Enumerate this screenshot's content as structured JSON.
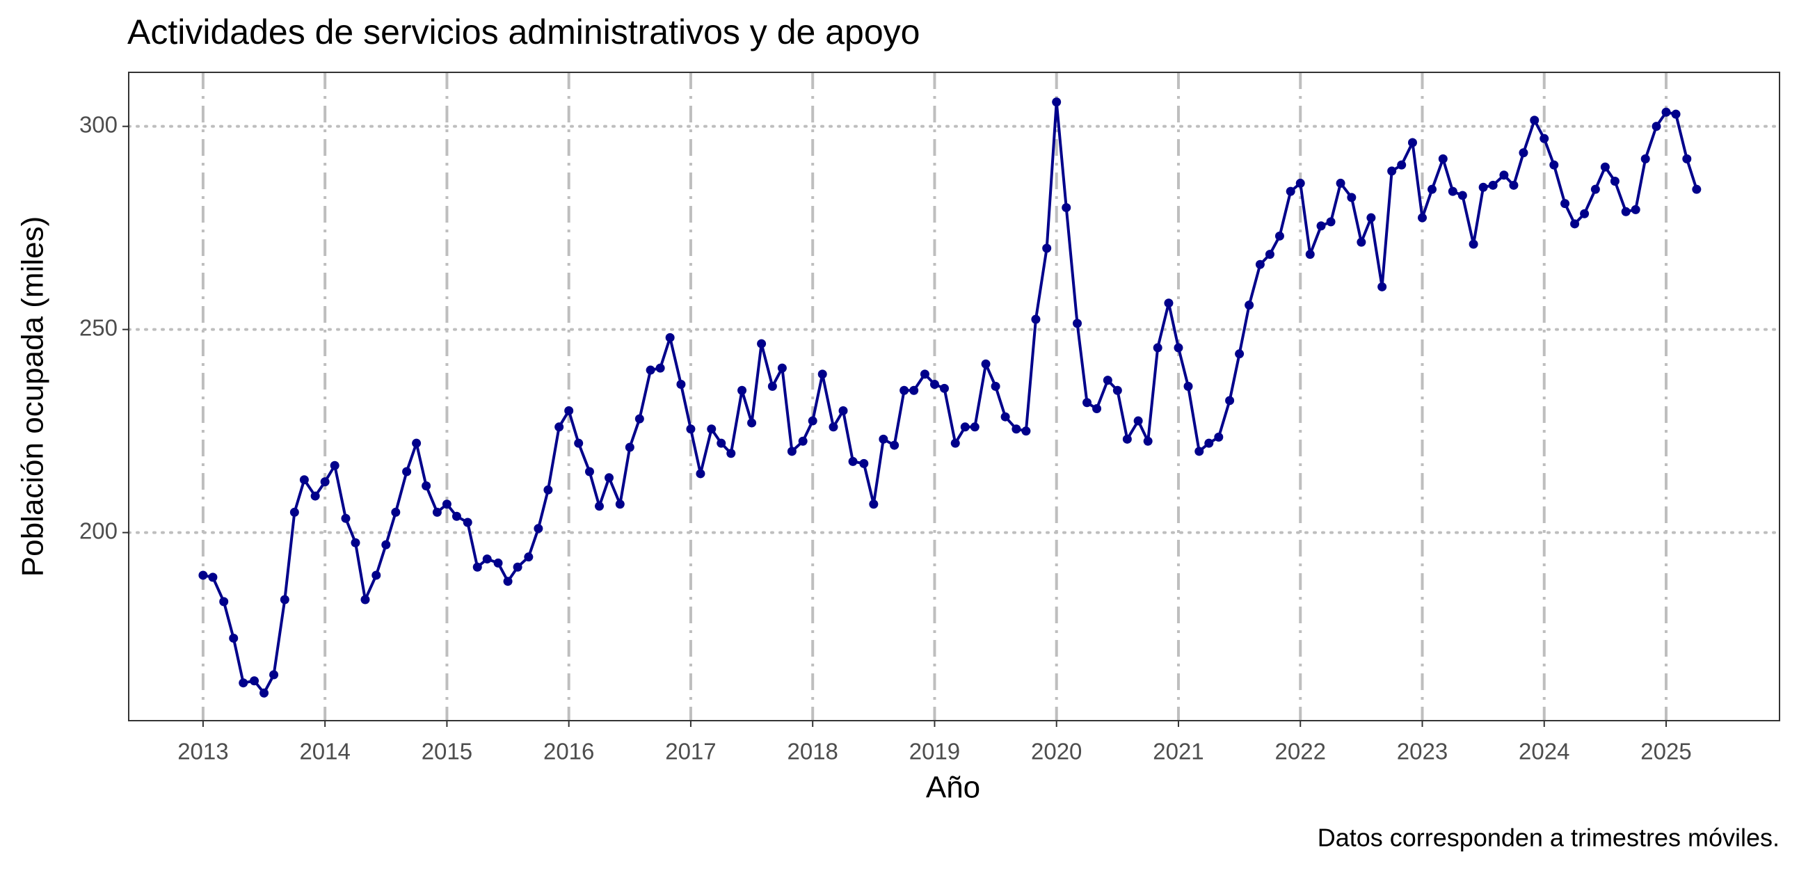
{
  "chart_data": {
    "type": "line",
    "title": "Actividades de servicios administrativos y de apoyo",
    "x_label": "Año",
    "y_label": "Población ocupada (miles)",
    "caption": "Datos corresponden a trimestres móviles.",
    "x": [
      2013,
      2013.08,
      2013.17,
      2013.25,
      2013.33,
      2013.42,
      2013.5,
      2013.58,
      2013.67,
      2013.75,
      2013.83,
      2013.92,
      2014,
      2014.08,
      2014.17,
      2014.25,
      2014.33,
      2014.42,
      2014.5,
      2014.58,
      2014.67,
      2014.75,
      2014.83,
      2014.92,
      2015,
      2015.08,
      2015.17,
      2015.25,
      2015.33,
      2015.42,
      2015.5,
      2015.58,
      2015.67,
      2015.75,
      2015.83,
      2015.92,
      2016,
      2016.08,
      2016.17,
      2016.25,
      2016.33,
      2016.42,
      2016.5,
      2016.58,
      2016.67,
      2016.75,
      2016.83,
      2016.92,
      2017,
      2017.08,
      2017.17,
      2017.25,
      2017.33,
      2017.42,
      2017.5,
      2017.58,
      2017.67,
      2017.75,
      2017.83,
      2017.92,
      2018,
      2018.08,
      2018.17,
      2018.25,
      2018.33,
      2018.42,
      2018.5,
      2018.58,
      2018.67,
      2018.75,
      2018.83,
      2018.92,
      2019,
      2019.08,
      2019.17,
      2019.25,
      2019.33,
      2019.42,
      2019.5,
      2019.58,
      2019.67,
      2019.75,
      2019.83,
      2019.92,
      2020,
      2020.08,
      2020.17,
      2020.25,
      2020.33,
      2020.42,
      2020.5,
      2020.58,
      2020.67,
      2020.75,
      2020.83,
      2020.92,
      2021,
      2021.08,
      2021.17,
      2021.25,
      2021.33,
      2021.42,
      2021.5,
      2021.58,
      2021.67,
      2021.75,
      2021.83,
      2021.92,
      2022,
      2022.08,
      2022.17,
      2022.25,
      2022.33,
      2022.42,
      2022.5,
      2022.58,
      2022.67,
      2022.75,
      2022.83,
      2022.92,
      2023,
      2023.08,
      2023.17,
      2023.25,
      2023.33,
      2023.42,
      2023.5,
      2023.58,
      2023.67,
      2023.75,
      2023.83,
      2023.92,
      2024,
      2024.08,
      2024.17,
      2024.25,
      2024.33,
      2024.42,
      2024.5,
      2024.58,
      2024.67,
      2024.75,
      2024.83,
      2024.92,
      2025,
      2025.08,
      2025.17,
      2025.25
    ],
    "series": [
      {
        "name": "Población ocupada",
        "color": "#00008b",
        "values": [
          189.5,
          189,
          183,
          174,
          163,
          163.5,
          160.5,
          165,
          183.5,
          205,
          213,
          209,
          212.5,
          216.5,
          203.5,
          197.5,
          183.5,
          189.5,
          197,
          205,
          215,
          222,
          211.5,
          205,
          207,
          204,
          202.5,
          191.5,
          193.5,
          192.5,
          188,
          191.5,
          194,
          201,
          210.5,
          226,
          230,
          222,
          215,
          206.5,
          213.5,
          207,
          221,
          228,
          240,
          240.5,
          248,
          236.5,
          225.5,
          214.5,
          225.5,
          222,
          219.5,
          235,
          227,
          246.5,
          236,
          240.5,
          220,
          222.5,
          227.5,
          239,
          226,
          230,
          217.5,
          217,
          207,
          223,
          221.5,
          235,
          235,
          239,
          236.5,
          235.5,
          222,
          226,
          226,
          241.5,
          236,
          228.5,
          225.5,
          225,
          252.5,
          270,
          306,
          280,
          251.5,
          232,
          230.5,
          237.5,
          235,
          223,
          227.5,
          222.5,
          245.5,
          256.5,
          245.5,
          236,
          220,
          222,
          223.5,
          232.5,
          244,
          256,
          266,
          268.5,
          273,
          284,
          286,
          268.5,
          275.5,
          276.5,
          286,
          282.5,
          271.5,
          277.5,
          260.5,
          289,
          290.5,
          296,
          277.5,
          284.5,
          292,
          284,
          283,
          271,
          285,
          285.5,
          288,
          285.5,
          293.5,
          301.5,
          297,
          290.5,
          281,
          276,
          278.5,
          284.5,
          290,
          286.5,
          279,
          279.5,
          292,
          300,
          303.5,
          303,
          292,
          284.5
        ]
      }
    ],
    "xlim": [
      2012.39,
      2025.93
    ],
    "xticks": [
      2013,
      2014,
      2015,
      2016,
      2017,
      2018,
      2019,
      2020,
      2021,
      2022,
      2023,
      2024,
      2025
    ],
    "ylim": [
      153.7,
      313.3
    ],
    "yticks": [
      200,
      250,
      300
    ],
    "grid": true
  }
}
